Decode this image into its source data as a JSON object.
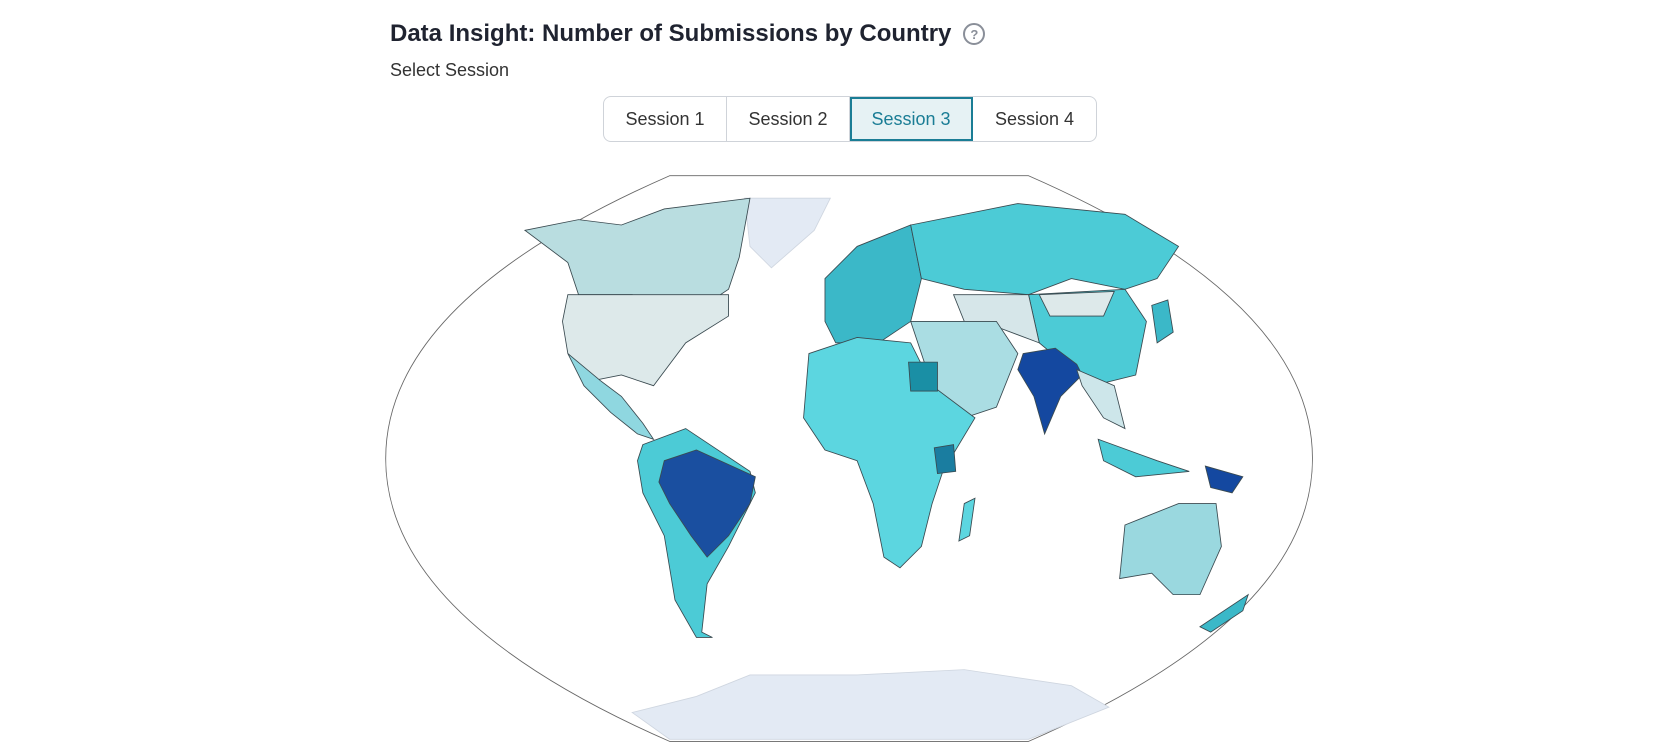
{
  "header": {
    "title": "Data Insight: Number of Submissions by Country",
    "help_icon": "?",
    "subtitle": "Select Session"
  },
  "tabs": [
    {
      "label": "Session 1",
      "active": false
    },
    {
      "label": "Session 2",
      "active": false
    },
    {
      "label": "Session 3",
      "active": true
    },
    {
      "label": "Session 4",
      "active": false
    }
  ]
}
